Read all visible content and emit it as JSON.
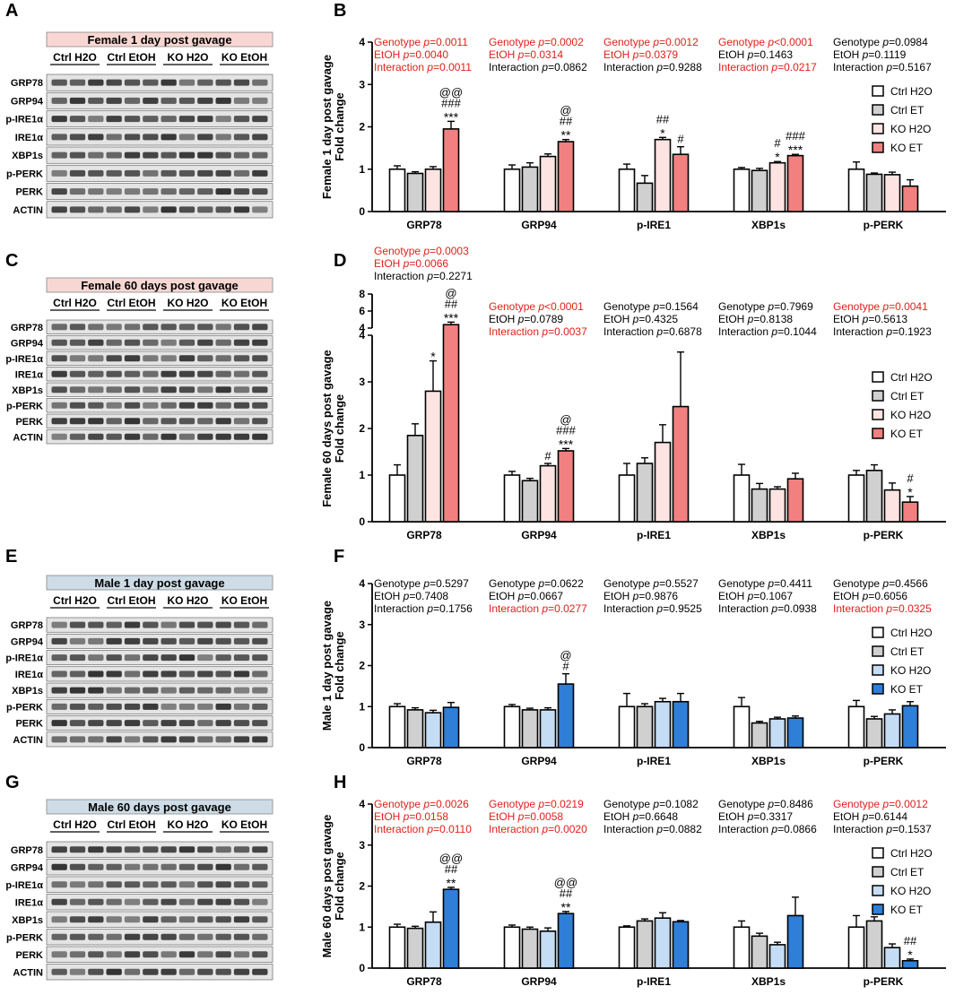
{
  "colors": {
    "red": "#e0201b",
    "bar_white": "#ffffff",
    "bar_grey": "#d0d0d0",
    "bar_pink": "#fde4e2",
    "bar_salmon": "#f28080",
    "bar_lightblue": "#c5dcf5",
    "bar_blue": "#2f7fd9",
    "female_header_bg": "#f8d7d3",
    "male_header_bg": "#cddce6"
  },
  "blots": [
    {
      "letter": "A",
      "title": "Female 1 day post gavage",
      "header_color": "#f8d7d3",
      "groups": [
        "Ctrl H2O",
        "Ctrl EtOH",
        "KO H2O",
        "KO EtOH"
      ],
      "proteins": [
        "GRP78",
        "GRP94",
        "p-IRE1α",
        "IRE1α",
        "XBP1s",
        "p-PERK",
        "PERK",
        "ACTIN"
      ]
    },
    {
      "letter": "C",
      "title": "Female 60 days post gavage",
      "header_color": "#f8d7d3",
      "groups": [
        "Ctrl H2O",
        "Ctrl EtOH",
        "KO H2O",
        "KO EtOH"
      ],
      "proteins": [
        "GRP78",
        "GRP94",
        "p-IRE1α",
        "IRE1α",
        "XBP1s",
        "p-PERK",
        "PERK",
        "ACTIN"
      ]
    },
    {
      "letter": "E",
      "title": "Male 1 day post gavage",
      "header_color": "#cddce6",
      "groups": [
        "Ctrl H2O",
        "Ctrl EtOH",
        "KO H2O",
        "KO EtOH"
      ],
      "proteins": [
        "GRP78",
        "GRP94",
        "p-IRE1α",
        "IRE1α",
        "XBP1s",
        "p-PERK",
        "PERK",
        "ACTIN"
      ]
    },
    {
      "letter": "G",
      "title": "Male 60 days post gavage",
      "header_color": "#cddce6",
      "groups": [
        "Ctrl H2O",
        "Ctrl EtOH",
        "KO H2O",
        "KO EtOH"
      ],
      "proteins": [
        "GRP78",
        "GRP94",
        "p-IRE1α",
        "IRE1α",
        "XBP1s",
        "p-PERK",
        "PERK",
        "ACTIN"
      ]
    }
  ],
  "chart_data": [
    {
      "letter": "B",
      "type": "bar",
      "ylabel": "Female 1 day post gavage\nFold change",
      "ylim": [
        0,
        4
      ],
      "yticks": [
        0,
        1,
        2,
        3,
        4
      ],
      "categories": [
        "GRP78",
        "GRP94",
        "p-IRE1",
        "XBP1s",
        "p-PERK"
      ],
      "legend": [
        "Ctrl H2O",
        "Ctrl ET",
        "KO H2O",
        "KO ET"
      ],
      "colors": [
        "#ffffff",
        "#d0d0d0",
        "#fde4e2",
        "#f28080"
      ],
      "series": [
        {
          "name": "Ctrl H2O",
          "values": [
            1.0,
            1.0,
            1.0,
            1.0,
            1.0
          ],
          "errors": [
            0.08,
            0.1,
            0.12,
            0.04,
            0.17
          ]
        },
        {
          "name": "Ctrl ET",
          "values": [
            0.9,
            1.05,
            0.67,
            0.97,
            0.88
          ],
          "errors": [
            0.04,
            0.1,
            0.18,
            0.05,
            0.03
          ]
        },
        {
          "name": "KO H2O",
          "values": [
            1.0,
            1.3,
            1.7,
            1.15,
            0.87
          ],
          "errors": [
            0.06,
            0.06,
            0.05,
            0.03,
            0.06
          ]
        },
        {
          "name": "KO ET",
          "values": [
            1.95,
            1.65,
            1.35,
            1.32,
            0.6
          ],
          "errors": [
            0.18,
            0.05,
            0.18,
            0.03,
            0.15
          ]
        }
      ],
      "sig": [
        {
          "cat": 0,
          "bar": 3,
          "lines": [
            "@@",
            "###",
            "***"
          ]
        },
        {
          "cat": 1,
          "bar": 3,
          "lines": [
            "@",
            "##",
            "**"
          ]
        },
        {
          "cat": 2,
          "bar": 2,
          "lines": [
            "##",
            "*"
          ]
        },
        {
          "cat": 2,
          "bar": 3,
          "lines": [
            "#"
          ]
        },
        {
          "cat": 3,
          "bar": 2,
          "lines": [
            "#",
            "*"
          ]
        },
        {
          "cat": 3,
          "bar": 3,
          "lines": [
            "###",
            "***"
          ]
        }
      ],
      "stats": [
        [
          {
            "label": "Genotype",
            "value": "0.0011",
            "op": "=",
            "red": true
          },
          {
            "label": "EtOH",
            "value": "0.0040",
            "op": "=",
            "red": true
          },
          {
            "label": "Interaction",
            "value": "0.0011",
            "op": "=",
            "red": true
          }
        ],
        [
          {
            "label": "Genotype",
            "value": "0.0002",
            "op": "=",
            "red": true
          },
          {
            "label": "EtOH",
            "value": "0.0314",
            "op": "=",
            "red": true
          },
          {
            "label": "Interaction",
            "value": "0.0862",
            "op": "=",
            "red": false
          }
        ],
        [
          {
            "label": "Genotype",
            "value": "0.0012",
            "op": "=",
            "red": true
          },
          {
            "label": "EtOH",
            "value": "0.0379",
            "op": "=",
            "red": true
          },
          {
            "label": "Interaction",
            "value": "0.9288",
            "op": "=",
            "red": false
          }
        ],
        [
          {
            "label": "Genotype",
            "value": "0.0001",
            "op": "<",
            "red": true
          },
          {
            "label": "EtOH",
            "value": "0.1463",
            "op": "=",
            "red": false
          },
          {
            "label": "Interaction",
            "value": "0.0217",
            "op": "=",
            "red": true
          }
        ],
        [
          {
            "label": "Genotype",
            "value": "0.0984",
            "op": "=",
            "red": false
          },
          {
            "label": "EtOH",
            "value": "0.1119",
            "op": "=",
            "red": false
          },
          {
            "label": "Interaction",
            "value": "0.5167",
            "op": "=",
            "red": false
          }
        ]
      ]
    },
    {
      "letter": "D",
      "type": "bar",
      "ylabel": "Female 60 days post gavage\nFold change",
      "ylim": [
        0,
        4
      ],
      "yticks": [
        0,
        1,
        2,
        3,
        4
      ],
      "broken_axis_ticks": [
        "4",
        "6",
        "8"
      ],
      "categories": [
        "GRP78",
        "GRP94",
        "p-IRE1",
        "XBP1s",
        "p-PERK"
      ],
      "legend": [
        "Ctrl H2O",
        "Ctrl ET",
        "KO H2O",
        "KO ET"
      ],
      "colors": [
        "#ffffff",
        "#d0d0d0",
        "#fde4e2",
        "#f28080"
      ],
      "series": [
        {
          "name": "Ctrl H2O",
          "values": [
            1.0,
            1.0,
            1.0,
            1.0,
            1.0
          ],
          "errors": [
            0.22,
            0.08,
            0.25,
            0.23,
            0.1
          ]
        },
        {
          "name": "Ctrl ET",
          "values": [
            1.85,
            0.88,
            1.25,
            0.7,
            1.1
          ],
          "errors": [
            0.25,
            0.05,
            0.12,
            0.12,
            0.12
          ]
        },
        {
          "name": "KO H2O",
          "values": [
            2.8,
            1.2,
            1.7,
            0.7,
            0.68
          ],
          "errors": [
            0.65,
            0.05,
            0.38,
            0.05,
            0.15
          ]
        },
        {
          "name": "KO ET",
          "values": [
            4.4,
            1.52,
            2.47,
            0.92,
            0.42
          ],
          "errors": [
            0.3,
            0.05,
            1.17,
            0.12,
            0.12
          ]
        }
      ],
      "sig": [
        {
          "cat": 0,
          "bar": 2,
          "lines": [
            "*"
          ]
        },
        {
          "cat": 0,
          "bar": 3,
          "lines": [
            "@",
            "##",
            "***"
          ]
        },
        {
          "cat": 1,
          "bar": 2,
          "lines": [
            "#"
          ]
        },
        {
          "cat": 1,
          "bar": 3,
          "lines": [
            "@",
            "###",
            "***"
          ]
        },
        {
          "cat": 4,
          "bar": 3,
          "lines": [
            "#",
            "*"
          ]
        }
      ],
      "stats": [
        [
          {
            "label": "Genotype",
            "value": "0.0003",
            "op": "=",
            "red": true
          },
          {
            "label": "EtOH",
            "value": "0.0066",
            "op": "=",
            "red": true
          },
          {
            "label": "Interaction",
            "value": "0.2271",
            "op": "=",
            "red": false
          }
        ],
        [
          {
            "label": "Genotype",
            "value": "0.0001",
            "op": "<",
            "red": true
          },
          {
            "label": "EtOH",
            "value": "0.0789",
            "op": "=",
            "red": false
          },
          {
            "label": "Interaction",
            "value": "0.0037",
            "op": "=",
            "red": true
          }
        ],
        [
          {
            "label": "Genotype",
            "value": "0.1564",
            "op": "=",
            "red": false
          },
          {
            "label": "EtOH",
            "value": "0.4325",
            "op": "=",
            "red": false
          },
          {
            "label": "Interaction",
            "value": "0.6878",
            "op": "=",
            "red": false
          }
        ],
        [
          {
            "label": "Genotype",
            "value": "0.7969",
            "op": "=",
            "red": false
          },
          {
            "label": "EtOH",
            "value": "0.8138",
            "op": "=",
            "red": false
          },
          {
            "label": "Interaction",
            "value": "0.1044",
            "op": "=",
            "red": false
          }
        ],
        [
          {
            "label": "Genotype",
            "value": "0.0041",
            "op": "=",
            "red": true
          },
          {
            "label": "EtOH",
            "value": "0.5613",
            "op": "=",
            "red": false
          },
          {
            "label": "Interaction",
            "value": "0.1923",
            "op": "=",
            "red": false
          }
        ]
      ]
    },
    {
      "letter": "F",
      "type": "bar",
      "ylabel": "Male 1 day post gavage\nFold change",
      "ylim": [
        0,
        4
      ],
      "yticks": [
        0,
        1,
        2,
        3,
        4
      ],
      "categories": [
        "GRP78",
        "GRP94",
        "p-IRE1",
        "XBP1s",
        "p-PERK"
      ],
      "legend": [
        "Ctrl H2O",
        "Ctrl ET",
        "KO H2O",
        "KO ET"
      ],
      "colors": [
        "#ffffff",
        "#d0d0d0",
        "#c5dcf5",
        "#2f7fd9"
      ],
      "series": [
        {
          "name": "Ctrl H2O",
          "values": [
            1.0,
            1.0,
            1.0,
            1.0,
            1.0
          ],
          "errors": [
            0.07,
            0.05,
            0.32,
            0.22,
            0.15
          ]
        },
        {
          "name": "Ctrl ET",
          "values": [
            0.92,
            0.92,
            1.0,
            0.6,
            0.7
          ],
          "errors": [
            0.05,
            0.04,
            0.07,
            0.04,
            0.06
          ]
        },
        {
          "name": "KO H2O",
          "values": [
            0.85,
            0.92,
            1.12,
            0.7,
            0.82
          ],
          "errors": [
            0.06,
            0.05,
            0.08,
            0.04,
            0.1
          ]
        },
        {
          "name": "KO ET",
          "values": [
            0.98,
            1.55,
            1.12,
            0.72,
            1.02
          ],
          "errors": [
            0.12,
            0.25,
            0.2,
            0.05,
            0.1
          ]
        }
      ],
      "sig": [
        {
          "cat": 1,
          "bar": 3,
          "lines": [
            "@",
            "#"
          ]
        }
      ],
      "stats": [
        [
          {
            "label": "Genotype",
            "value": "0.5297",
            "op": "=",
            "red": false
          },
          {
            "label": "EtOH",
            "value": "0.7408",
            "op": "=",
            "red": false
          },
          {
            "label": "Interaction",
            "value": "0.1756",
            "op": "=",
            "red": false
          }
        ],
        [
          {
            "label": "Genotype",
            "value": "0.0622",
            "op": "=",
            "red": false
          },
          {
            "label": "EtOH",
            "value": "0.0667",
            "op": "=",
            "red": false
          },
          {
            "label": "Interaction",
            "value": "0.0277",
            "op": "=",
            "red": true
          }
        ],
        [
          {
            "label": "Genotype",
            "value": "0.5527",
            "op": "=",
            "red": false
          },
          {
            "label": "EtOH",
            "value": "0.9876",
            "op": "=",
            "red": false
          },
          {
            "label": "Interaction",
            "value": "0.9525",
            "op": "=",
            "red": false
          }
        ],
        [
          {
            "label": "Genotype",
            "value": "0.4411",
            "op": "=",
            "red": false
          },
          {
            "label": "EtOH",
            "value": "0.1067",
            "op": "=",
            "red": false
          },
          {
            "label": "Interaction",
            "value": "0.0938",
            "op": "=",
            "red": false
          }
        ],
        [
          {
            "label": "Genotype",
            "value": "0.4566",
            "op": "=",
            "red": false
          },
          {
            "label": "EtOH",
            "value": "0.6056",
            "op": "=",
            "red": false
          },
          {
            "label": "Interaction",
            "value": "0.0325",
            "op": "=",
            "red": true
          }
        ]
      ]
    },
    {
      "letter": "H",
      "type": "bar",
      "ylabel": "Male 60 days post gavage\nFold change",
      "ylim": [
        0,
        4
      ],
      "yticks": [
        0,
        1,
        2,
        3,
        4
      ],
      "categories": [
        "GRP78",
        "GRP94",
        "p-IRE1",
        "XBP1s",
        "p-PERK"
      ],
      "legend": [
        "Ctrl H2O",
        "Ctrl ET",
        "KO H2O",
        "KO ET"
      ],
      "colors": [
        "#ffffff",
        "#d0d0d0",
        "#c5dcf5",
        "#2f7fd9"
      ],
      "series": [
        {
          "name": "Ctrl H2O",
          "values": [
            1.0,
            1.0,
            1.0,
            1.0,
            1.0
          ],
          "errors": [
            0.07,
            0.05,
            0.03,
            0.15,
            0.28
          ]
        },
        {
          "name": "Ctrl ET",
          "values": [
            0.97,
            0.95,
            1.15,
            0.78,
            1.15
          ],
          "errors": [
            0.05,
            0.05,
            0.05,
            0.07,
            0.1
          ]
        },
        {
          "name": "KO H2O",
          "values": [
            1.12,
            0.9,
            1.22,
            0.57,
            0.5
          ],
          "errors": [
            0.25,
            0.08,
            0.13,
            0.06,
            0.09
          ]
        },
        {
          "name": "KO ET",
          "values": [
            1.92,
            1.33,
            1.13,
            1.28,
            0.18
          ],
          "errors": [
            0.05,
            0.05,
            0.03,
            0.45,
            0.04
          ]
        }
      ],
      "sig": [
        {
          "cat": 0,
          "bar": 3,
          "lines": [
            "@@",
            "##",
            "**"
          ]
        },
        {
          "cat": 1,
          "bar": 3,
          "lines": [
            "@@",
            "##",
            "**"
          ]
        },
        {
          "cat": 4,
          "bar": 3,
          "lines": [
            "##",
            "*"
          ]
        }
      ],
      "stats": [
        [
          {
            "label": "Genotype",
            "value": "0.0026",
            "op": "=",
            "red": true
          },
          {
            "label": "EtOH",
            "value": "0.0158",
            "op": "=",
            "red": true
          },
          {
            "label": "Interaction",
            "value": "0.0110",
            "op": "=",
            "red": true
          }
        ],
        [
          {
            "label": "Genotype",
            "value": "0.0219",
            "op": "=",
            "red": true
          },
          {
            "label": "EtOH",
            "value": "0.0058",
            "op": "=",
            "red": true
          },
          {
            "label": "Interaction",
            "value": "0.0020",
            "op": "=",
            "red": true
          }
        ],
        [
          {
            "label": "Genotype",
            "value": "0.1082",
            "op": "=",
            "red": false
          },
          {
            "label": "EtOH",
            "value": "0.6648",
            "op": "=",
            "red": false
          },
          {
            "label": "Interaction",
            "value": "0.0882",
            "op": "=",
            "red": false
          }
        ],
        [
          {
            "label": "Genotype",
            "value": "0.8486",
            "op": "=",
            "red": false
          },
          {
            "label": "EtOH",
            "value": "0.3317",
            "op": "=",
            "red": false
          },
          {
            "label": "Interaction",
            "value": "0.0866",
            "op": "=",
            "red": false
          }
        ],
        [
          {
            "label": "Genotype",
            "value": "0.0012",
            "op": "=",
            "red": true
          },
          {
            "label": "EtOH",
            "value": "0.6144",
            "op": "=",
            "red": false
          },
          {
            "label": "Interaction",
            "value": "0.1537",
            "op": "=",
            "red": false
          }
        ]
      ]
    }
  ]
}
